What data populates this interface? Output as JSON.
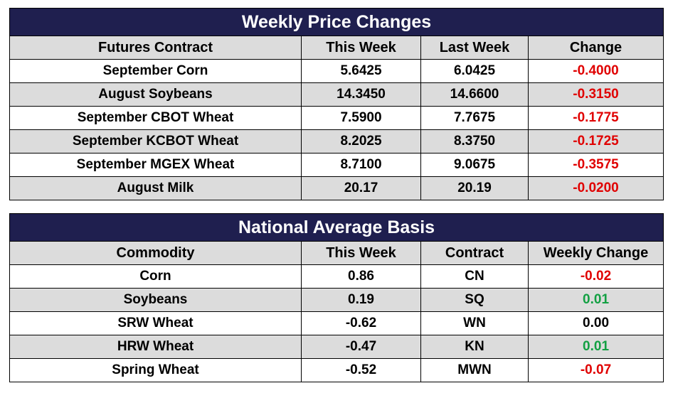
{
  "price_table": {
    "title": "Weekly Price Changes",
    "headers": [
      "Futures Contract",
      "This Week",
      "Last Week",
      "Change"
    ],
    "rows": [
      {
        "contract": "September Corn",
        "this_week": "5.6425",
        "last_week": "6.0425",
        "change": "-0.4000"
      },
      {
        "contract": "August Soybeans",
        "this_week": "14.3450",
        "last_week": "14.6600",
        "change": "-0.3150"
      },
      {
        "contract": "September CBOT Wheat",
        "this_week": "7.5900",
        "last_week": "7.7675",
        "change": "-0.1775"
      },
      {
        "contract": "September KCBOT Wheat",
        "this_week": "8.2025",
        "last_week": "8.3750",
        "change": "-0.1725"
      },
      {
        "contract": "September MGEX Wheat",
        "this_week": "8.7100",
        "last_week": "9.0675",
        "change": "-0.3575"
      },
      {
        "contract": "August Milk",
        "this_week": "20.17",
        "last_week": "20.19",
        "change": "-0.0200"
      }
    ]
  },
  "basis_table": {
    "title": "National Average Basis",
    "headers": [
      "Commodity",
      "This Week",
      "Contract",
      "Weekly Change"
    ],
    "rows": [
      {
        "commodity": "Corn",
        "this_week": "0.86",
        "contract": "CN",
        "change": "-0.02"
      },
      {
        "commodity": "Soybeans",
        "this_week": "0.19",
        "contract": "SQ",
        "change": "0.01"
      },
      {
        "commodity": "SRW Wheat",
        "this_week": "-0.62",
        "contract": "WN",
        "change": "0.00"
      },
      {
        "commodity": "HRW Wheat",
        "this_week": "-0.47",
        "contract": "KN",
        "change": "0.01"
      },
      {
        "commodity": "Spring Wheat",
        "this_week": "-0.52",
        "contract": "MWN",
        "change": "-0.07"
      }
    ]
  },
  "colors": {
    "header_bg": "#1f1f4f",
    "negative": "#e00000",
    "positive": "#13a043",
    "stripe": "#dcdcdc"
  }
}
